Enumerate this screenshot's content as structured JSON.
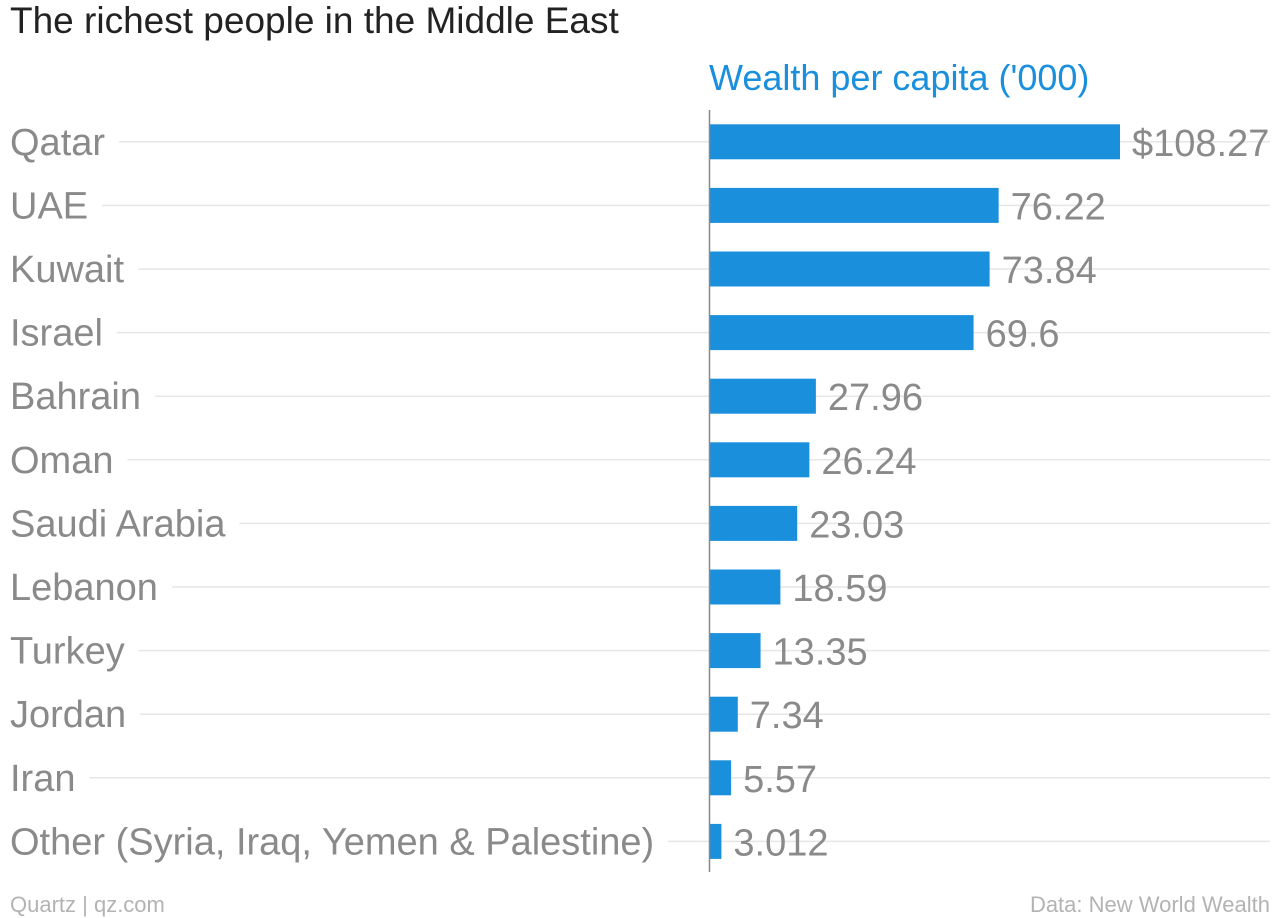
{
  "chart_data": {
    "type": "bar",
    "orientation": "horizontal",
    "title": "The richest people in the Middle East",
    "series": [
      {
        "name": "Wealth per capita ('000)",
        "color": "#1a8fdc",
        "values": [
          108.27,
          76.22,
          73.84,
          69.6,
          27.96,
          26.24,
          23.03,
          18.59,
          13.35,
          7.34,
          5.57,
          3.012
        ],
        "value_labels": [
          "$108.27",
          "76.22",
          "73.84",
          "69.6",
          "27.96",
          "26.24",
          "23.03",
          "18.59",
          "13.35",
          "7.34",
          "5.57",
          "3.012"
        ]
      }
    ],
    "categories": [
      "Qatar",
      "UAE",
      "Kuwait",
      "Israel",
      "Bahrain",
      "Oman",
      "Saudi Arabia",
      "Lebanon",
      "Turkey",
      "Jordan",
      "Iran",
      "Other (Syria, Iraq, Yemen & Palestine)"
    ],
    "xlim": [
      0,
      110
    ],
    "grid": true,
    "legend": "top"
  },
  "footer": {
    "source_left": "Quartz | qz.com",
    "source_right": "Data: New World Wealth"
  },
  "colors": {
    "bar": "#1a8fdc",
    "series_label": "#1a8fdc",
    "category_label": "#8a8a8a",
    "grid": "#e6e6e6",
    "axis": "#888888"
  }
}
